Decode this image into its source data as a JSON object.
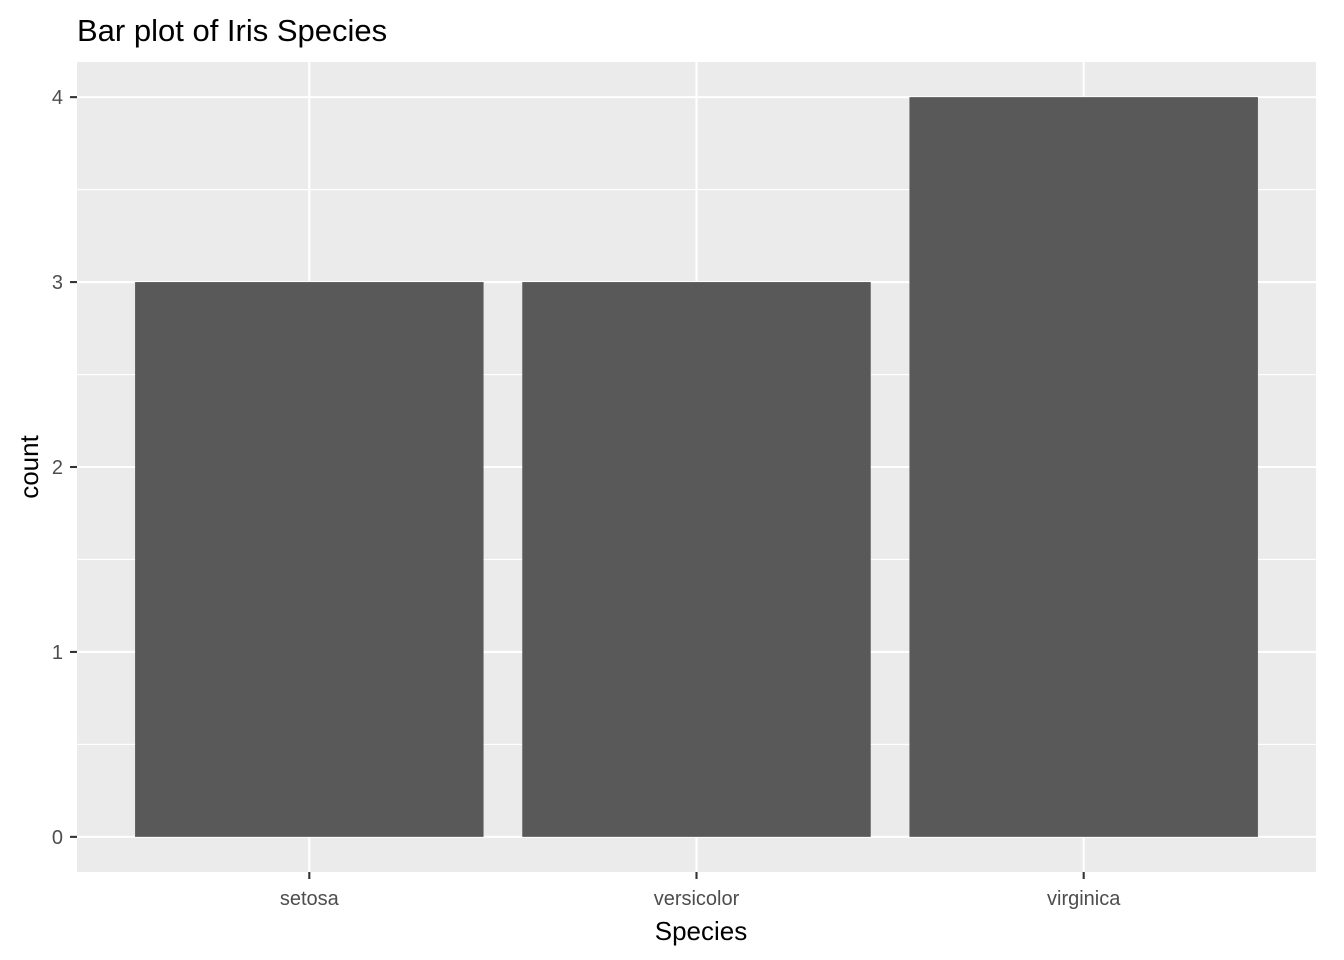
{
  "chart_data": {
    "type": "bar",
    "title": "Bar plot of Iris Species",
    "xlabel": "Species",
    "ylabel": "count",
    "categories": [
      "setosa",
      "versicolor",
      "virginica"
    ],
    "values": [
      3,
      3,
      4
    ],
    "ylim": [
      -0.19,
      4.19
    ],
    "y_ticks": [
      0,
      1,
      2,
      3,
      4
    ],
    "grid": true,
    "legend": "none",
    "colors": {
      "bar": "#595959",
      "panel_background": "#ebebeb",
      "grid": "#ffffff",
      "tick_label": "#4d4d4d",
      "text": "#000000"
    }
  }
}
